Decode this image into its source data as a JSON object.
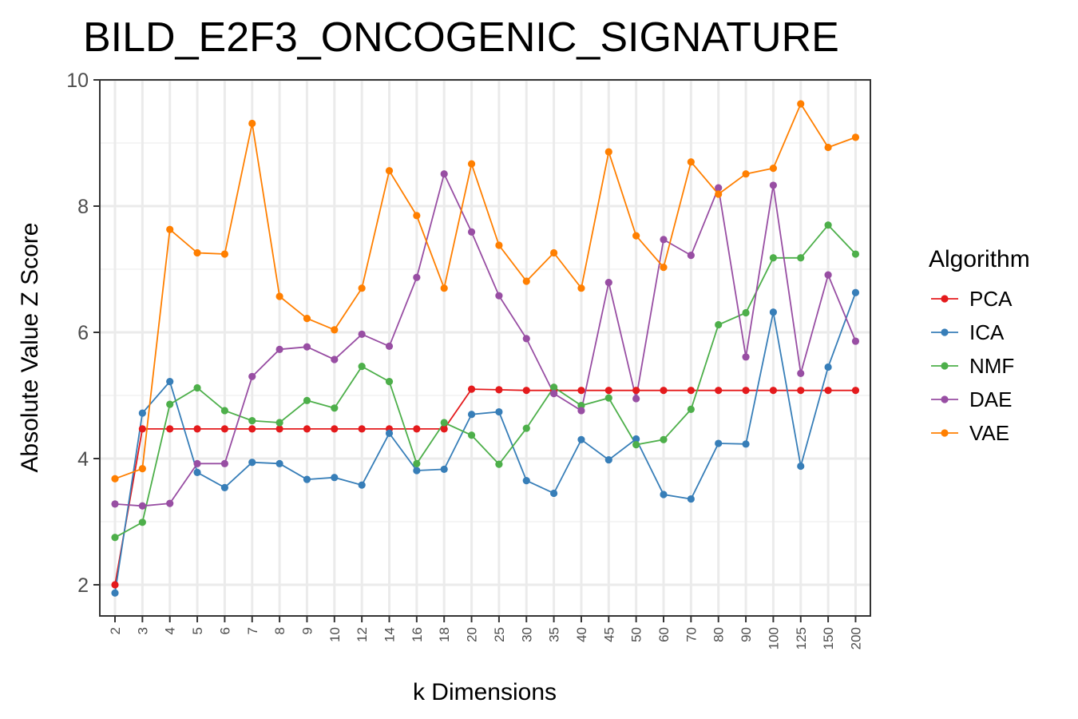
{
  "chart_data": {
    "type": "line",
    "title": "BILD_E2F3_ONCOGENIC_SIGNATURE",
    "xlabel": "k Dimensions",
    "ylabel": "Absolute Value Z Score",
    "ylim": [
      1.5,
      10
    ],
    "yticks": [
      2,
      4,
      6,
      8,
      10
    ],
    "grid": true,
    "legend_position": "right",
    "legend_title": "Algorithm",
    "categories": [
      "2",
      "3",
      "4",
      "5",
      "6",
      "7",
      "8",
      "9",
      "10",
      "12",
      "14",
      "16",
      "18",
      "20",
      "25",
      "30",
      "35",
      "40",
      "45",
      "50",
      "60",
      "70",
      "80",
      "90",
      "100",
      "125",
      "150",
      "200"
    ],
    "series": [
      {
        "name": "PCA",
        "color": "#e41a1c",
        "values": [
          2.0,
          4.47,
          4.47,
          4.47,
          4.47,
          4.47,
          4.47,
          4.47,
          4.47,
          4.47,
          4.47,
          4.47,
          4.47,
          5.1,
          5.09,
          5.08,
          5.08,
          5.08,
          5.08,
          5.08,
          5.08,
          5.08,
          5.08,
          5.08,
          5.08,
          5.08,
          5.08,
          5.08
        ]
      },
      {
        "name": "ICA",
        "color": "#377eb8",
        "values": [
          1.87,
          4.72,
          5.22,
          3.78,
          3.54,
          3.94,
          3.92,
          3.67,
          3.7,
          3.58,
          4.4,
          3.81,
          3.83,
          4.7,
          4.74,
          3.65,
          3.45,
          4.3,
          3.98,
          4.31,
          3.43,
          3.36,
          4.24,
          4.23,
          6.32,
          3.88,
          5.45,
          6.63
        ]
      },
      {
        "name": "NMF",
        "color": "#4daf4a",
        "values": [
          2.75,
          2.99,
          4.86,
          5.12,
          4.76,
          4.6,
          4.57,
          4.92,
          4.8,
          5.46,
          5.22,
          3.92,
          4.57,
          4.37,
          3.91,
          4.48,
          5.13,
          4.84,
          4.96,
          4.22,
          4.3,
          4.78,
          6.12,
          6.31,
          7.18,
          7.18,
          7.7,
          7.24
        ]
      },
      {
        "name": "DAE",
        "color": "#984ea3",
        "values": [
          3.28,
          3.25,
          3.29,
          3.92,
          3.92,
          5.3,
          5.73,
          5.77,
          5.57,
          5.97,
          5.78,
          6.87,
          8.51,
          7.59,
          6.58,
          5.9,
          5.03,
          4.76,
          6.79,
          4.95,
          7.47,
          7.22,
          8.29,
          5.61,
          8.33,
          5.35,
          6.91,
          5.86
        ]
      },
      {
        "name": "VAE",
        "color": "#ff7f00",
        "values": [
          3.68,
          3.84,
          7.63,
          7.26,
          7.24,
          9.31,
          6.57,
          6.22,
          6.04,
          6.7,
          8.56,
          7.85,
          6.7,
          8.67,
          7.38,
          6.81,
          7.26,
          6.7,
          8.86,
          7.53,
          7.03,
          8.7,
          8.19,
          8.51,
          8.6,
          9.62,
          8.93,
          9.09
        ]
      }
    ]
  }
}
